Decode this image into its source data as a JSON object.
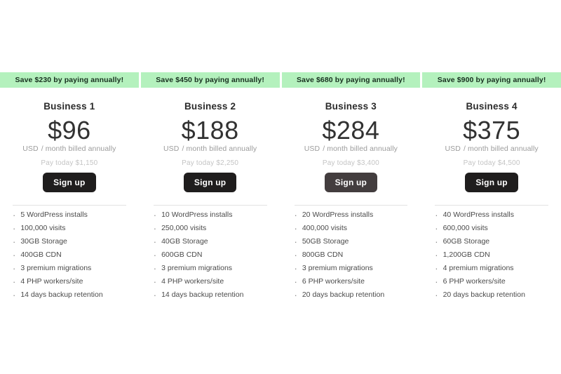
{
  "colors": {
    "banner_bg": "#b4f1bd",
    "banner_text": "#17301f",
    "heading": "#2b2b2b",
    "price": "#323232",
    "muted": "#9c9c9c",
    "faint": "#c4c4c4",
    "button_bg": "#1f1d1d",
    "button_bg_hover": "#433d3e",
    "button_text": "#ffffff",
    "divider": "#e3e3e3",
    "feature": "#4a4a4a",
    "bullet": "#8a8a8a"
  },
  "plans": [
    {
      "banner": "Save $230 by paying annually!",
      "name": "Business 1",
      "price": "$96",
      "currency": "USD",
      "billing_note": "/ month billed annually",
      "pay_today": "Pay today $1,150",
      "cta": "Sign up",
      "cta_state": "default",
      "features": [
        "5 WordPress installs",
        "100,000 visits",
        "30GB Storage",
        "400GB CDN",
        "3 premium migrations",
        "4 PHP workers/site",
        "14 days backup retention"
      ]
    },
    {
      "banner": "Save $450 by paying annually!",
      "name": "Business 2",
      "price": "$188",
      "currency": "USD",
      "billing_note": "/ month billed annually",
      "pay_today": "Pay today $2,250",
      "cta": "Sign up",
      "cta_state": "default",
      "features": [
        "10 WordPress installs",
        "250,000 visits",
        "40GB Storage",
        "600GB CDN",
        "3 premium migrations",
        "4 PHP workers/site",
        "14 days backup retention"
      ]
    },
    {
      "banner": "Save $680 by paying annually!",
      "name": "Business 3",
      "price": "$284",
      "currency": "USD",
      "billing_note": "/ month billed annually",
      "pay_today": "Pay today $3,400",
      "cta": "Sign up",
      "cta_state": "hover",
      "features": [
        "20 WordPress installs",
        "400,000 visits",
        "50GB Storage",
        "800GB CDN",
        "3 premium migrations",
        "6 PHP workers/site",
        "20 days backup retention"
      ]
    },
    {
      "banner": "Save $900 by paying annually!",
      "name": "Business 4",
      "price": "$375",
      "currency": "USD",
      "billing_note": "/ month billed annually",
      "pay_today": "Pay today $4,500",
      "cta": "Sign up",
      "cta_state": "default",
      "features": [
        "40 WordPress installs",
        "600,000 visits",
        "60GB Storage",
        "1,200GB CDN",
        "4 premium migrations",
        "6 PHP workers/site",
        "20 days backup retention"
      ]
    }
  ]
}
